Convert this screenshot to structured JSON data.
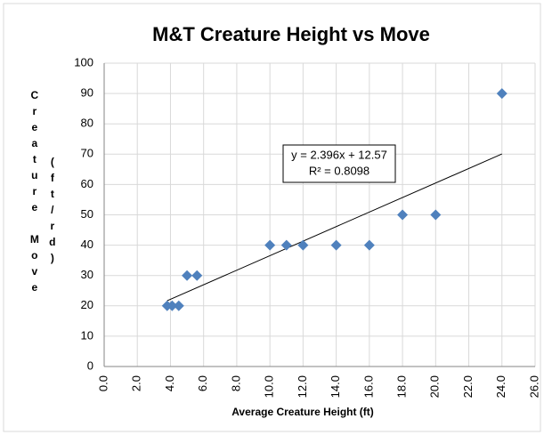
{
  "chart_data": {
    "type": "scatter",
    "title": "M&T Creature Height vs Move",
    "x_label": "Average Creature Height (ft)",
    "y_label": "Creature Move",
    "y_label_unit": "(ft/rd)",
    "series": [
      {
        "name": "Move",
        "color": "#4f81bd",
        "x": [
          3.8,
          4.1,
          4.5,
          5.0,
          5.6,
          10,
          11,
          12,
          14,
          16,
          18,
          20,
          24
        ],
        "values": [
          20,
          20,
          20,
          30,
          30,
          40,
          40,
          40,
          40,
          40,
          50,
          50,
          90
        ]
      }
    ],
    "trendline": {
      "slope": 2.396,
      "intercept": 12.57,
      "equation": "y = 2.396x + 12.57",
      "r_squared": "R² = 0.8098"
    },
    "xlim": [
      0,
      26
    ],
    "xticks": [
      {
        "value": 0,
        "label": "0.0"
      },
      {
        "value": 2,
        "label": "2.0"
      },
      {
        "value": 4,
        "label": "4.0"
      },
      {
        "value": 6,
        "label": "6.0"
      },
      {
        "value": 8,
        "label": "8.0"
      },
      {
        "value": 10,
        "label": "10.0"
      },
      {
        "value": 12,
        "label": "12.0"
      },
      {
        "value": 14,
        "label": "14.0"
      },
      {
        "value": 16,
        "label": "16.0"
      },
      {
        "value": 18,
        "label": "18.0"
      },
      {
        "value": 20,
        "label": "20.0"
      },
      {
        "value": 22,
        "label": "22.0"
      },
      {
        "value": 24,
        "label": "24.0"
      },
      {
        "value": 26,
        "label": "26.0"
      }
    ],
    "ylim": [
      0,
      100
    ],
    "yticks": [
      0,
      10,
      20,
      30,
      40,
      50,
      60,
      70,
      80,
      90,
      100
    ],
    "grid": true
  }
}
